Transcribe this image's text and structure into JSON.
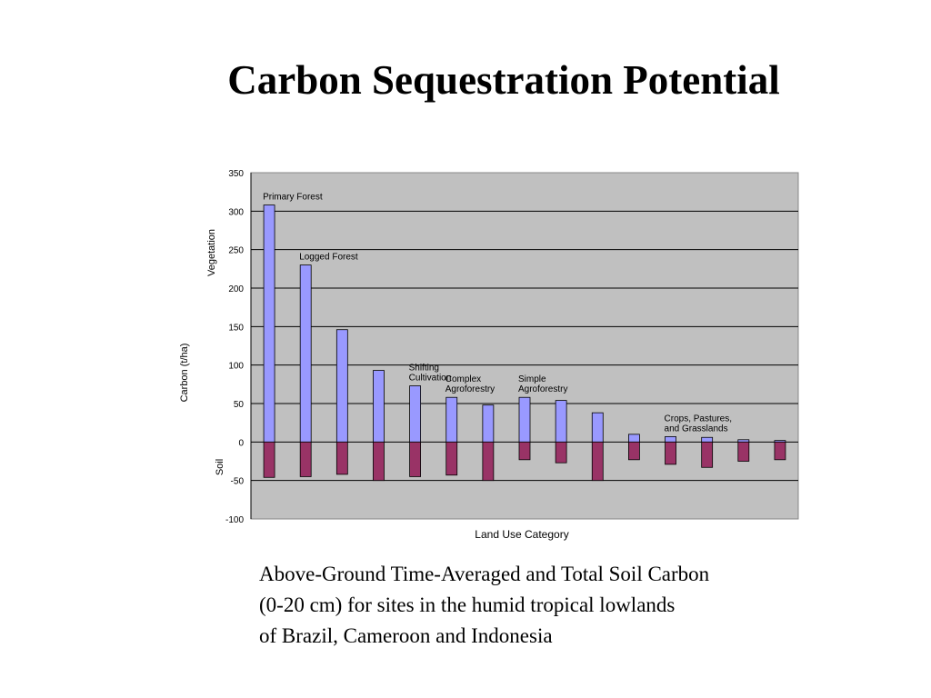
{
  "slide": {
    "title": "Carbon Sequestration Potential",
    "caption_lines": [
      "Above-Ground Time-Averaged and Total Soil Carbon",
      "(0-20 cm) for sites in the humid tropical lowlands",
      "of Brazil, Cameroon and Indonesia"
    ]
  },
  "colors": {
    "vegetation": "#9999ff",
    "soil": "#993366",
    "plot_background": "#c0c0c0",
    "gridline": "#000000"
  },
  "chart_data": {
    "type": "bar",
    "title": "",
    "xlabel": "Land Use Category",
    "ylabel": "Carbon (t/ha)",
    "ylabel_upper": "Vegetation",
    "ylabel_lower": "Soil",
    "ylim": [
      -100,
      350
    ],
    "yticks": [
      350,
      300,
      250,
      200,
      150,
      100,
      50,
      0,
      -50,
      -100
    ],
    "grid": true,
    "legend": "none",
    "groups": [
      {
        "label": [
          "Primary Forest"
        ],
        "bars": [
          0
        ]
      },
      {
        "label": [
          "Logged Forest"
        ],
        "bars": [
          1
        ]
      },
      {
        "label": [
          "Shifting",
          "Cultivation"
        ],
        "bars": [
          4
        ]
      },
      {
        "label": [
          "Complex",
          "Agroforestry"
        ],
        "bars": [
          5
        ]
      },
      {
        "label": [
          "Simple",
          "Agroforestry"
        ],
        "bars": [
          7
        ]
      },
      {
        "label": [
          "Crops, Pastures,",
          "and Grasslands"
        ],
        "bars": [
          11
        ]
      }
    ],
    "series": [
      {
        "name": "Vegetation",
        "values": [
          308,
          230,
          146,
          93,
          73,
          58,
          48,
          58,
          54,
          38,
          10,
          7,
          6,
          3,
          2
        ]
      },
      {
        "name": "Soil",
        "values": [
          -46,
          -45,
          -42,
          -50,
          -45,
          -43,
          -50,
          -23,
          -27,
          -50,
          -23,
          -29,
          -33,
          -25,
          -23
        ]
      }
    ]
  }
}
